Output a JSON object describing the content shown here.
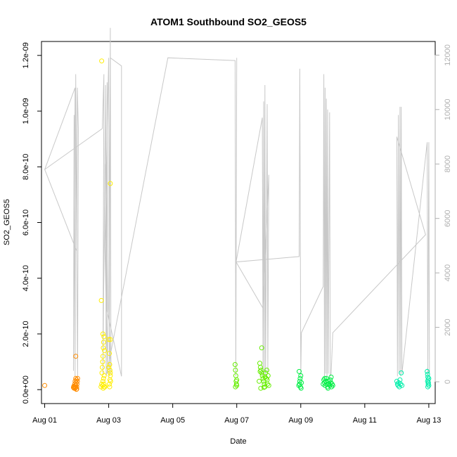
{
  "chart_data": {
    "type": "scatter",
    "title": "ATOM1 Southbound SO2_GEOS5",
    "xlabel": "Date",
    "ylabel": "SO2_GEOS5",
    "xlim": [
      -0.1,
      12.2
    ],
    "ylim": [
      -5e-11,
      1.25e-09
    ],
    "y2lim": [
      -800,
      12500
    ],
    "x_ticks": [
      {
        "value": 0,
        "label": "Aug 01"
      },
      {
        "value": 2,
        "label": "Aug 03"
      },
      {
        "value": 4,
        "label": "Aug 05"
      },
      {
        "value": 6,
        "label": "Aug 07"
      },
      {
        "value": 8,
        "label": "Aug 09"
      },
      {
        "value": 10,
        "label": "Aug 11"
      },
      {
        "value": 12,
        "label": "Aug 13"
      }
    ],
    "y_ticks": [
      {
        "value": 0,
        "label": "0.0e+00"
      },
      {
        "value": 2e-10,
        "label": "2.0e-10"
      },
      {
        "value": 4e-10,
        "label": "4.0e-10"
      },
      {
        "value": 6e-10,
        "label": "6.0e-10"
      },
      {
        "value": 8e-10,
        "label": "8.0e-10"
      },
      {
        "value": 1e-09,
        "label": "1.0e-09"
      },
      {
        "value": 1.2e-09,
        "label": "1.2e-09"
      }
    ],
    "y2_ticks": [
      {
        "value": 0,
        "label": "0"
      },
      {
        "value": 2000,
        "label": "2000"
      },
      {
        "value": 4000,
        "label": "4000"
      },
      {
        "value": 6000,
        "label": "6000"
      },
      {
        "value": 8000,
        "label": "8000"
      },
      {
        "value": 10000,
        "label": "10000"
      },
      {
        "value": 12000,
        "label": "12000"
      }
    ],
    "grid": false,
    "series": [
      {
        "color": "#FF8C00",
        "points": [
          [
            0.0,
            1.5e-11
          ],
          [
            0.97,
            1.2e-10
          ],
          [
            0.92,
            5e-12
          ],
          [
            0.93,
            1e-11
          ],
          [
            0.94,
            2e-11
          ],
          [
            0.95,
            3e-11
          ],
          [
            0.96,
            1.5e-11
          ],
          [
            0.97,
            8e-12
          ],
          [
            0.98,
            2.5e-11
          ],
          [
            0.99,
            3.5e-11
          ],
          [
            1.0,
            1e-11
          ],
          [
            1.01,
            2e-11
          ],
          [
            1.02,
            3e-11
          ],
          [
            1.03,
            4e-11
          ],
          [
            0.9,
            8e-12
          ],
          [
            0.91,
            1.2e-11
          ],
          [
            0.95,
            5e-12
          ],
          [
            1.0,
            2e-12
          ],
          [
            0.97,
            4e-11
          ],
          [
            0.99,
            1e-12
          ]
        ]
      },
      {
        "color": "#FFEE00",
        "points": [
          [
            1.78,
            1.18e-09
          ],
          [
            2.05,
            7.4e-10
          ],
          [
            1.77,
            3.2e-10
          ],
          [
            2.0,
            1.8e-10
          ],
          [
            2.05,
            1.8e-10
          ],
          [
            2.02,
            1.3e-10
          ],
          [
            2.03,
            9e-11
          ],
          [
            2.04,
            7e-11
          ],
          [
            2.05,
            5e-11
          ],
          [
            2.06,
            3e-11
          ],
          [
            2.02,
            2e-11
          ],
          [
            2.03,
            1e-11
          ],
          [
            2.04,
            3.5e-11
          ],
          [
            2.05,
            6e-11
          ],
          [
            2.0,
            8e-11
          ],
          [
            1.82,
            2e-10
          ],
          [
            1.85,
            1.9e-10
          ],
          [
            1.84,
            1.7e-10
          ],
          [
            1.83,
            1.5e-10
          ],
          [
            1.82,
            1.2e-10
          ],
          [
            1.81,
            1e-10
          ],
          [
            1.8,
            8e-11
          ],
          [
            1.79,
            6e-11
          ],
          [
            1.84,
            4e-11
          ],
          [
            1.85,
            2e-11
          ],
          [
            1.86,
            1e-11
          ],
          [
            1.83,
            5e-12
          ],
          [
            1.82,
            3e-11
          ],
          [
            1.81,
            1.5e-11
          ],
          [
            1.87,
            1.4e-10
          ],
          [
            1.88,
            1e-11
          ],
          [
            1.86,
            5e-11
          ],
          [
            1.78,
            2e-11
          ],
          [
            1.76,
            1e-11
          ]
        ]
      },
      {
        "color": "#66EE00",
        "points": [
          [
            5.95,
            9e-11
          ],
          [
            5.96,
            7e-11
          ],
          [
            5.97,
            5e-11
          ],
          [
            5.98,
            3e-11
          ],
          [
            5.99,
            2e-11
          ],
          [
            6.0,
            1.5e-11
          ],
          [
            6.0,
            3.5e-11
          ],
          [
            5.96,
            1e-11
          ],
          [
            6.78,
            1.5e-10
          ],
          [
            6.72,
            9.5e-11
          ],
          [
            6.74,
            8e-11
          ],
          [
            6.76,
            7e-11
          ],
          [
            6.78,
            6e-11
          ],
          [
            6.8,
            5e-11
          ],
          [
            6.82,
            4e-11
          ],
          [
            6.84,
            3e-11
          ],
          [
            6.86,
            2e-11
          ],
          [
            6.88,
            1e-11
          ],
          [
            6.9,
            6e-11
          ],
          [
            6.92,
            4e-11
          ],
          [
            6.94,
            7e-11
          ],
          [
            6.96,
            2e-11
          ],
          [
            6.98,
            5e-11
          ],
          [
            7.0,
            1.5e-11
          ],
          [
            6.7,
            3e-11
          ],
          [
            6.75,
            5e-12
          ],
          [
            6.85,
            8e-12
          ],
          [
            6.95,
            3.5e-11
          ],
          [
            6.73,
            6.5e-11
          ],
          [
            6.89,
            4.5e-11
          ]
        ]
      },
      {
        "color": "#00EE44",
        "points": [
          [
            7.95,
            6.5e-11
          ],
          [
            8.0,
            5e-11
          ],
          [
            7.98,
            4e-11
          ],
          [
            7.97,
            3e-11
          ],
          [
            7.96,
            2e-11
          ],
          [
            7.99,
            1e-11
          ],
          [
            8.01,
            5e-12
          ],
          [
            7.94,
            1.5e-11
          ],
          [
            8.02,
            2.5e-11
          ],
          [
            8.72,
            3.5e-11
          ],
          [
            8.74,
            2.5e-11
          ],
          [
            8.76,
            1.5e-11
          ],
          [
            8.78,
            3e-11
          ],
          [
            8.8,
            4e-11
          ],
          [
            8.82,
            2e-11
          ],
          [
            8.84,
            1e-11
          ],
          [
            8.86,
            3e-11
          ],
          [
            8.88,
            2e-11
          ],
          [
            8.9,
            1.5e-11
          ],
          [
            8.92,
            3.5e-11
          ],
          [
            8.94,
            2.5e-11
          ],
          [
            8.96,
            1e-11
          ],
          [
            8.98,
            2e-11
          ],
          [
            9.0,
            1.5e-11
          ],
          [
            8.7,
            2e-11
          ],
          [
            8.75,
            4e-11
          ],
          [
            8.85,
            5e-12
          ],
          [
            8.95,
            4.5e-11
          ]
        ]
      },
      {
        "color": "#00EEAA",
        "points": [
          [
            11.0,
            3e-11
          ],
          [
            11.02,
            2e-11
          ],
          [
            11.04,
            1.5e-11
          ],
          [
            11.06,
            2.5e-11
          ],
          [
            11.08,
            1e-11
          ],
          [
            11.1,
            3.5e-11
          ],
          [
            11.12,
            2e-11
          ],
          [
            11.14,
            6e-11
          ],
          [
            11.16,
            1.5e-11
          ],
          [
            11.95,
            6.5e-11
          ],
          [
            11.96,
            5.5e-11
          ],
          [
            11.97,
            4.5e-11
          ],
          [
            11.98,
            3.5e-11
          ],
          [
            11.99,
            2.5e-11
          ],
          [
            12.0,
            1.5e-11
          ],
          [
            11.97,
            1e-11
          ],
          [
            11.96,
            3e-11
          ],
          [
            12.0,
            4e-11
          ],
          [
            11.98,
            2e-11
          ]
        ]
      }
    ],
    "altitude_series": {
      "color": "#c8c8c8",
      "axis": "right",
      "points": [
        [
          0.0,
          7800
        ],
        [
          0.95,
          10800
        ],
        [
          0.9,
          400
        ],
        [
          0.92,
          9800
        ],
        [
          0.95,
          200
        ],
        [
          0.97,
          11300
        ],
        [
          1.0,
          4700
        ],
        [
          1.02,
          10800
        ],
        [
          1.05,
          9300
        ],
        [
          1.03,
          200
        ],
        [
          1.0,
          4800
        ],
        [
          0.0,
          7800
        ],
        [
          1.8,
          9300
        ],
        [
          1.85,
          11300
        ],
        [
          1.82,
          300
        ],
        [
          1.9,
          10900
        ],
        [
          1.92,
          200
        ],
        [
          1.95,
          11000
        ],
        [
          1.97,
          300
        ],
        [
          1.88,
          5000
        ],
        [
          2.0,
          11900
        ],
        [
          2.02,
          200
        ],
        [
          2.05,
          13000
        ],
        [
          2.07,
          300
        ],
        [
          2.0,
          2700
        ],
        [
          2.05,
          11900
        ],
        [
          2.4,
          11600
        ],
        [
          2.4,
          200
        ],
        [
          1.95,
          2600
        ],
        [
          1.9,
          8000
        ],
        [
          1.92,
          200
        ],
        [
          3.85,
          11900
        ],
        [
          5.95,
          11800
        ],
        [
          5.97,
          200
        ],
        [
          6.0,
          11900
        ],
        [
          5.98,
          4400
        ],
        [
          6.8,
          9700
        ],
        [
          6.82,
          200
        ],
        [
          6.84,
          10300
        ],
        [
          6.86,
          300
        ],
        [
          6.88,
          10900
        ],
        [
          6.9,
          200
        ],
        [
          6.95,
          10200
        ],
        [
          6.97,
          300
        ],
        [
          7.0,
          7600
        ],
        [
          6.82,
          2700
        ],
        [
          5.98,
          4400
        ],
        [
          7.95,
          4600
        ],
        [
          7.97,
          11500
        ],
        [
          8.0,
          200
        ],
        [
          8.02,
          1800
        ],
        [
          8.7,
          3500
        ],
        [
          8.72,
          11300
        ],
        [
          8.74,
          200
        ],
        [
          8.76,
          10800
        ],
        [
          8.78,
          300
        ],
        [
          8.8,
          10400
        ],
        [
          8.82,
          200
        ],
        [
          8.84,
          10000
        ],
        [
          8.86,
          300
        ],
        [
          8.9,
          9900
        ],
        [
          8.92,
          200
        ],
        [
          8.95,
          300
        ],
        [
          9.0,
          1800
        ],
        [
          11.9,
          5400
        ],
        [
          11.0,
          9000
        ],
        [
          11.02,
          200
        ],
        [
          11.05,
          9800
        ],
        [
          11.07,
          300
        ],
        [
          11.1,
          10100
        ],
        [
          11.12,
          200
        ],
        [
          11.14,
          10100
        ],
        [
          11.16,
          300
        ],
        [
          11.95,
          8800
        ],
        [
          11.97,
          200
        ],
        [
          12.0,
          8800
        ],
        [
          12.02,
          300
        ],
        [
          11.95,
          500
        ]
      ]
    }
  }
}
